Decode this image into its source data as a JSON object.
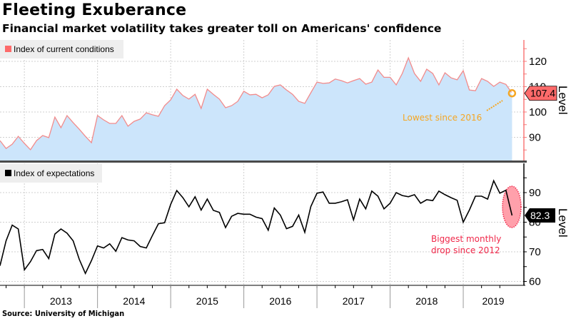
{
  "header": {
    "title": "Fleeting Exuberance",
    "subtitle": "Financial market volatility takes greater toll on Americans' confidence"
  },
  "footer": {
    "source": "Source: University of Michigan"
  },
  "colors": {
    "current_line": "#f28b8b",
    "current_fill": "#cce5fb",
    "current_legend": "#fd6a6a",
    "current_axis": "#f87a7a",
    "expectations_line": "#000000",
    "orange_annotation": "#f5a623",
    "red_annotation": "#f0284a",
    "drop_ellipse_fill": "#ffa0ab",
    "legend_bg": "#eeeeee"
  },
  "chart_data": [
    {
      "type": "area",
      "title": "Fleeting Exuberance",
      "legend": [
        "Index of current conditions"
      ],
      "legend_position": "top-left",
      "ylabel": "Level",
      "ylim": [
        80,
        128
      ],
      "yticks": [
        90,
        100,
        110,
        120
      ],
      "grid": true,
      "x_start": "2012-09",
      "x_end": "2019-08",
      "frequency": "monthly",
      "last_value_label": "107.4",
      "annotation": "Lowest since 2016",
      "series": [
        {
          "name": "Index of current conditions",
          "values": [
            88.7,
            85.6,
            87.3,
            90.4,
            87.6,
            85.1,
            88.7,
            90.7,
            89.9,
            98.0,
            93.8,
            98.6,
            95.8,
            93.2,
            90.4,
            87.9,
            98.6,
            96.9,
            95.5,
            95.5,
            98.6,
            94.4,
            96.3,
            97.2,
            99.7,
            98.9,
            98.3,
            102.5,
            104.8,
            109.0,
            106.5,
            105.1,
            107.0,
            101.4,
            109.0,
            107.0,
            105.1,
            101.7,
            102.5,
            104.2,
            108.2,
            106.8,
            107.0,
            105.6,
            106.8,
            110.1,
            110.7,
            108.7,
            107.0,
            104.2,
            103.4,
            107.6,
            111.8,
            111.3,
            111.5,
            113.0,
            112.4,
            111.5,
            112.4,
            113.2,
            111.0,
            111.8,
            116.6,
            113.7,
            113.7,
            110.7,
            115.2,
            121.4,
            115.2,
            112.1,
            116.9,
            115.2,
            110.7,
            115.5,
            113.5,
            112.7,
            116.3,
            108.7,
            108.4,
            113.2,
            112.1,
            110.1,
            111.8,
            110.9,
            107.4
          ]
        }
      ]
    },
    {
      "type": "line",
      "legend": [
        "Index of expectations"
      ],
      "legend_position": "top-left",
      "ylabel": "Level",
      "ylim": [
        58,
        97
      ],
      "yticks": [
        60,
        70,
        80,
        90
      ],
      "grid": true,
      "x_start": "2012-09",
      "x_end": "2019-08",
      "frequency": "monthly",
      "xtick_labels": [
        "2013",
        "2014",
        "2015",
        "2016",
        "2017",
        "2018",
        "2019"
      ],
      "last_value_label": "82.3",
      "annotation": "Biggest monthly drop since 2012",
      "annotation_lines": [
        "Biggest monthly",
        "drop since 2012"
      ],
      "series": [
        {
          "name": "Index of expectations",
          "values": [
            65.3,
            73.7,
            79.0,
            77.7,
            63.9,
            66.7,
            70.4,
            70.8,
            67.7,
            76.0,
            77.7,
            76.3,
            73.7,
            67.5,
            62.7,
            67.0,
            72.0,
            71.3,
            72.7,
            70.2,
            74.8,
            74.0,
            73.7,
            71.8,
            71.3,
            75.5,
            79.5,
            79.8,
            86.0,
            90.7,
            88.3,
            85.2,
            88.6,
            84.1,
            87.8,
            84.0,
            83.3,
            78.2,
            82.0,
            83.0,
            82.7,
            82.7,
            81.7,
            81.2,
            77.3,
            84.8,
            82.4,
            77.8,
            78.6,
            82.4,
            76.6,
            85.3,
            89.8,
            90.2,
            86.4,
            86.4,
            86.9,
            87.6,
            80.8,
            87.8,
            84.5,
            90.5,
            88.8,
            84.5,
            86.4,
            90.0,
            89.0,
            88.6,
            89.3,
            86.4,
            87.6,
            87.3,
            90.5,
            89.3,
            88.3,
            87.4,
            80.0,
            84.1,
            88.8,
            88.8,
            87.8,
            94.0,
            89.8,
            90.8,
            82.3
          ]
        }
      ]
    }
  ]
}
